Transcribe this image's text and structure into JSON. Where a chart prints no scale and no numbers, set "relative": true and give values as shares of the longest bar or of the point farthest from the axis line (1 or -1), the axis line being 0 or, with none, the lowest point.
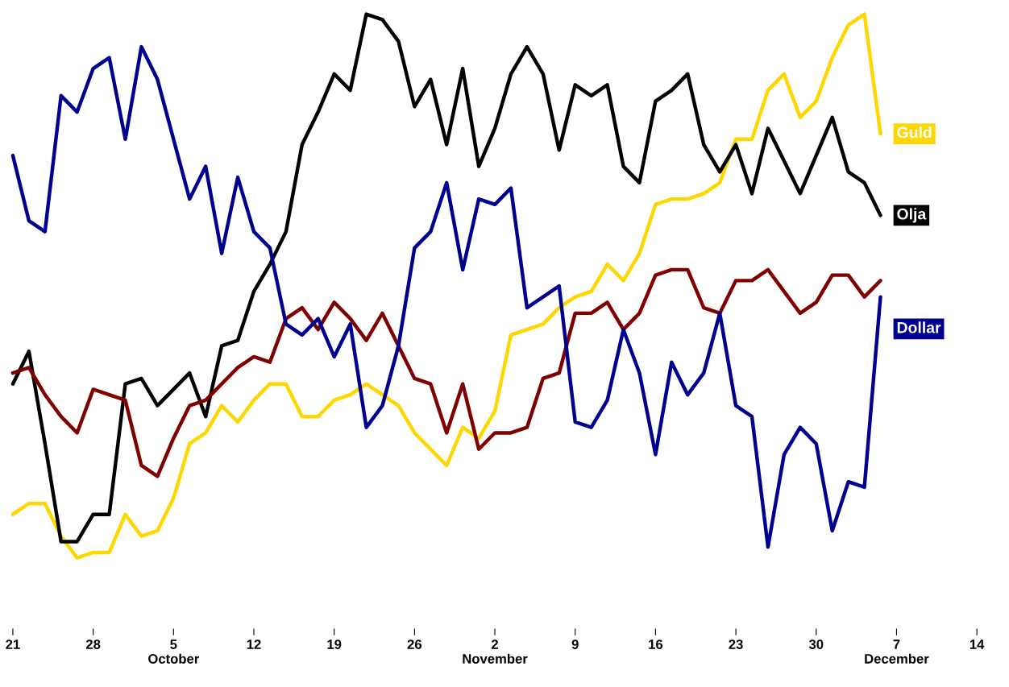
{
  "chart_data": {
    "type": "line",
    "relative": true,
    "legend": false,
    "grid": false,
    "marker": "none",
    "line_style": "solid",
    "categories": [
      "21",
      null,
      null,
      null,
      null,
      "28",
      null,
      null,
      null,
      null,
      "5\nOctober",
      null,
      null,
      null,
      null,
      "12",
      null,
      null,
      null,
      null,
      "19",
      null,
      null,
      null,
      null,
      "26",
      null,
      null,
      null,
      null,
      "2\nNovember",
      null,
      null,
      null,
      null,
      "9",
      null,
      null,
      null,
      null,
      "16",
      null,
      null,
      null,
      null,
      "23",
      null,
      null,
      null,
      null,
      "30",
      null,
      null,
      null,
      null,
      "7\nDecember",
      null,
      null,
      null,
      null,
      "14"
    ],
    "series": [
      {
        "name": "Guld",
        "color": "#ffd700",
        "values": [
          0.08,
          0.1,
          0.1,
          0.04,
          0.0,
          0.01,
          0.01,
          0.08,
          0.04,
          0.05,
          0.11,
          0.21,
          0.23,
          0.28,
          0.25,
          0.29,
          0.32,
          0.32,
          0.26,
          0.26,
          0.29,
          0.3,
          0.32,
          0.3,
          0.28,
          0.23,
          0.2,
          0.17,
          0.24,
          0.22,
          0.27,
          0.41,
          0.42,
          0.43,
          0.46,
          0.48,
          0.49,
          0.54,
          0.51,
          0.56,
          0.65,
          0.66,
          0.66,
          0.67,
          0.69,
          0.77,
          0.77,
          0.86,
          0.89,
          0.81,
          0.84,
          0.92,
          0.98,
          1.0,
          0.78,
          null,
          null,
          null,
          null,
          null,
          null
        ]
      },
      {
        "name": "Olja",
        "color": "#000000",
        "values": [
          0.32,
          0.38,
          0.21,
          0.03,
          0.03,
          0.08,
          0.08,
          0.32,
          0.33,
          0.28,
          0.31,
          0.34,
          0.26,
          0.39,
          0.4,
          0.49,
          0.54,
          0.6,
          0.76,
          0.82,
          0.89,
          0.86,
          1.0,
          0.99,
          0.95,
          0.83,
          0.88,
          0.76,
          0.9,
          0.72,
          0.79,
          0.89,
          0.94,
          0.89,
          0.75,
          0.87,
          0.85,
          0.87,
          0.72,
          0.69,
          0.84,
          0.86,
          0.89,
          0.76,
          0.71,
          0.76,
          0.67,
          0.79,
          0.73,
          0.67,
          0.74,
          0.81,
          0.71,
          0.69,
          0.63,
          null,
          null,
          null,
          null,
          null,
          null
        ]
      },
      {
        "color": "#800000",
        "values": [
          0.34,
          0.35,
          0.3,
          0.26,
          0.23,
          0.31,
          0.3,
          0.29,
          0.17,
          0.15,
          0.22,
          0.28,
          0.29,
          0.32,
          0.35,
          0.37,
          0.36,
          0.44,
          0.46,
          0.42,
          0.47,
          0.44,
          0.4,
          0.45,
          0.39,
          0.33,
          0.32,
          0.23,
          0.32,
          0.2,
          0.23,
          0.23,
          0.24,
          0.33,
          0.34,
          0.45,
          0.45,
          0.47,
          0.42,
          0.45,
          0.52,
          0.53,
          0.53,
          0.46,
          0.45,
          0.51,
          0.51,
          0.53,
          0.49,
          0.45,
          0.47,
          0.52,
          0.52,
          0.48,
          0.51,
          null,
          null,
          null,
          null,
          null,
          null
        ]
      },
      {
        "name": "Dollar",
        "color": "#000090",
        "values": [
          0.74,
          0.62,
          0.6,
          0.85,
          0.82,
          0.9,
          0.92,
          0.77,
          0.94,
          0.88,
          0.77,
          0.66,
          0.72,
          0.56,
          0.7,
          0.6,
          0.57,
          0.43,
          0.41,
          0.44,
          0.37,
          0.43,
          0.24,
          0.28,
          0.39,
          0.57,
          0.6,
          0.69,
          0.53,
          0.66,
          0.65,
          0.68,
          0.46,
          0.48,
          0.5,
          0.25,
          0.24,
          0.29,
          0.42,
          0.34,
          0.19,
          0.36,
          0.3,
          0.34,
          0.45,
          0.28,
          0.26,
          0.02,
          0.19,
          0.24,
          0.21,
          0.05,
          0.14,
          0.13,
          0.48,
          null,
          null,
          null,
          null,
          null,
          null
        ]
      }
    ]
  }
}
